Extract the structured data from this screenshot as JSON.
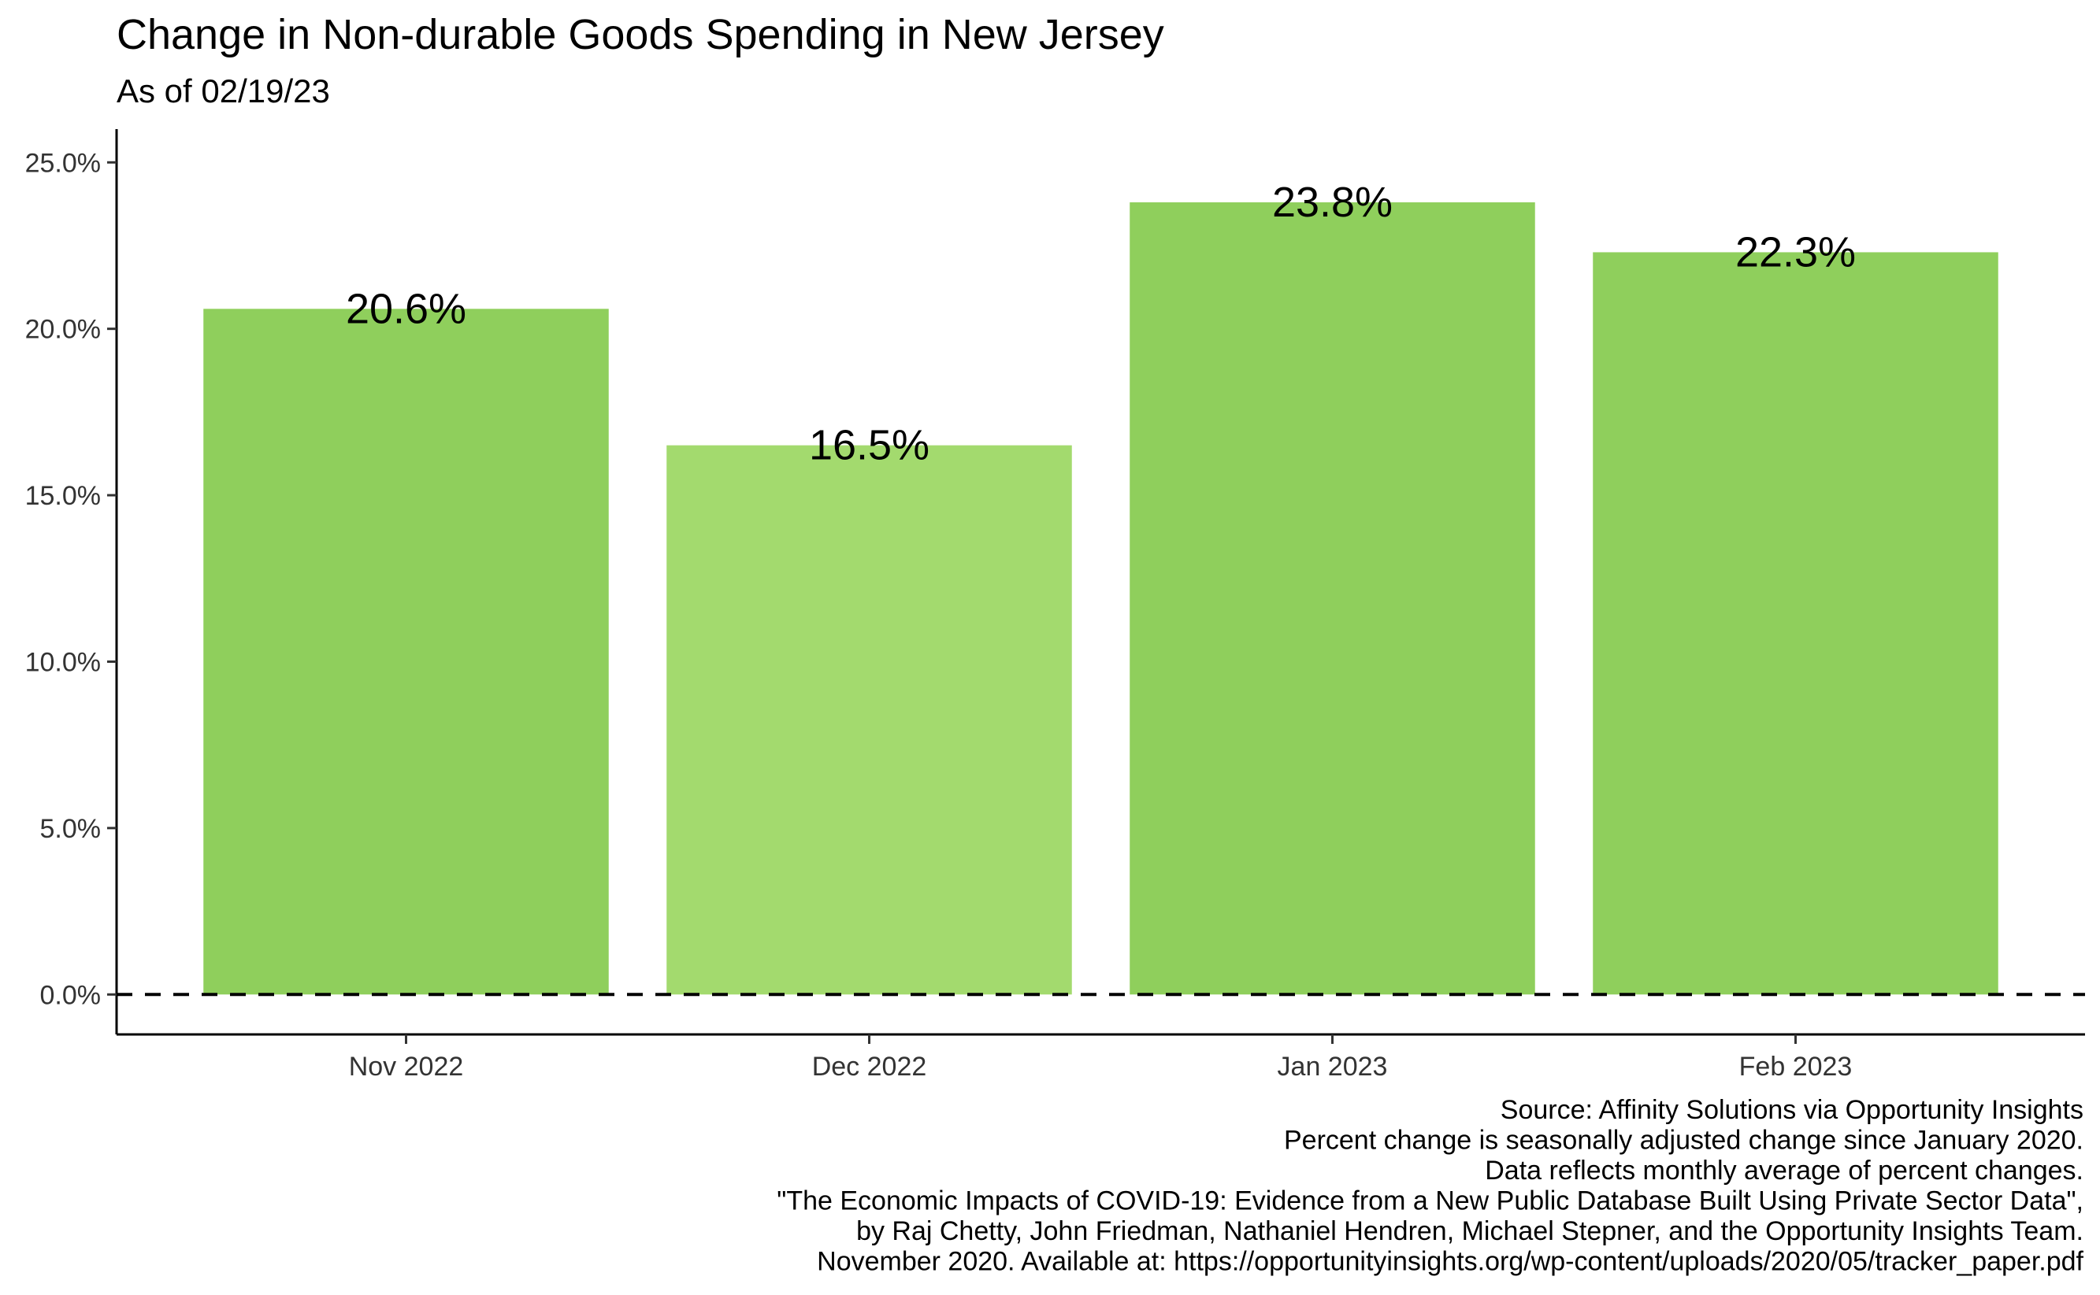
{
  "chart_data": {
    "type": "bar",
    "title": "Change in Non-durable Goods Spending in New Jersey",
    "subtitle": "As of 02/19/23",
    "categories": [
      "Nov 2022",
      "Dec 2022",
      "Jan 2023",
      "Feb 2023"
    ],
    "values": [
      20.6,
      16.5,
      23.8,
      22.3
    ],
    "data_labels": [
      "20.6%",
      "16.5%",
      "23.8%",
      "22.3%"
    ],
    "bar_colors": [
      "#8fcf5c",
      "#a3da6e",
      "#8fcf5c",
      "#8fcf5c"
    ],
    "ylim": [
      -1.2,
      26
    ],
    "yticks": [
      0,
      5,
      10,
      15,
      20,
      25
    ],
    "ytick_labels": [
      "0.0%",
      "5.0%",
      "10.0%",
      "15.0%",
      "20.0%",
      "25.0%"
    ],
    "reference_line": {
      "y": 0,
      "style": "dashed"
    },
    "grid": false,
    "legend": "none",
    "xlabel": "",
    "ylabel": ""
  },
  "caption_lines": [
    "Source: Affinity Solutions via Opportunity Insights",
    "Percent change is seasonally adjusted change since January 2020.",
    "Data reflects monthly average of percent changes.",
    "\"The Economic Impacts of COVID-19: Evidence from a New Public Database Built Using Private Sector Data\",",
    "by Raj Chetty, John Friedman, Nathaniel Hendren, Michael Stepner, and the Opportunity Insights Team.",
    "November 2020. Available at: https://opportunityinsights.org/wp-content/uploads/2020/05/tracker_paper.pdf"
  ]
}
